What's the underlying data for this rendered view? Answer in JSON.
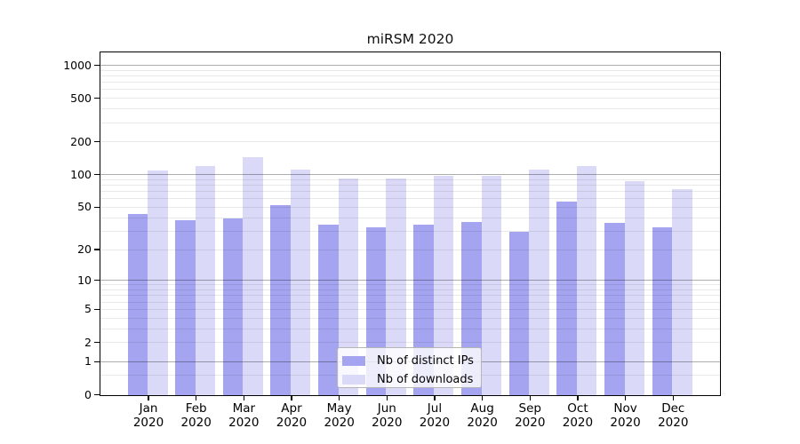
{
  "figure": {
    "background": "#ffffff"
  },
  "chart_data": {
    "type": "bar",
    "title": "miRSM 2020",
    "categories": [
      "Jan 2020",
      "Feb 2020",
      "Mar 2020",
      "Apr 2020",
      "May 2020",
      "Jun 2020",
      "Jul 2020",
      "Aug 2020",
      "Sep 2020",
      "Oct 2020",
      "Nov 2020",
      "Dec 2020"
    ],
    "series": [
      {
        "name": "Nb of distinct IPs",
        "color": "#a4a4f0",
        "values": [
          44,
          38,
          40,
          53,
          35,
          33,
          35,
          37,
          30,
          57,
          36,
          33
        ]
      },
      {
        "name": "Nb of downloads",
        "color": "#dadaf8",
        "values": [
          110,
          120,
          147,
          112,
          93,
          93,
          98,
          98,
          113,
          122,
          88,
          74
        ]
      }
    ],
    "xlabel": "",
    "ylabel": "",
    "y_scale": "log1p",
    "ylim": [
      0,
      1000
    ],
    "ytick_values": [
      0,
      1,
      2,
      5,
      10,
      20,
      50,
      100,
      200,
      500,
      1000
    ],
    "major_grid_values": [
      1,
      10,
      100,
      1000
    ],
    "minor_grid_values": [
      0.5,
      2,
      3,
      4,
      5,
      6,
      7,
      8,
      9,
      20,
      30,
      40,
      50,
      60,
      70,
      80,
      90,
      200,
      300,
      400,
      500,
      600,
      700,
      800,
      900
    ],
    "grid": true,
    "legend_position": "inside-bottom-center",
    "bar_edge": "none"
  },
  "legend": {
    "items": [
      {
        "label": "Nb of distinct IPs",
        "color": "#a4a4f0"
      },
      {
        "label": "Nb of downloads",
        "color": "#dadaf8"
      }
    ]
  }
}
